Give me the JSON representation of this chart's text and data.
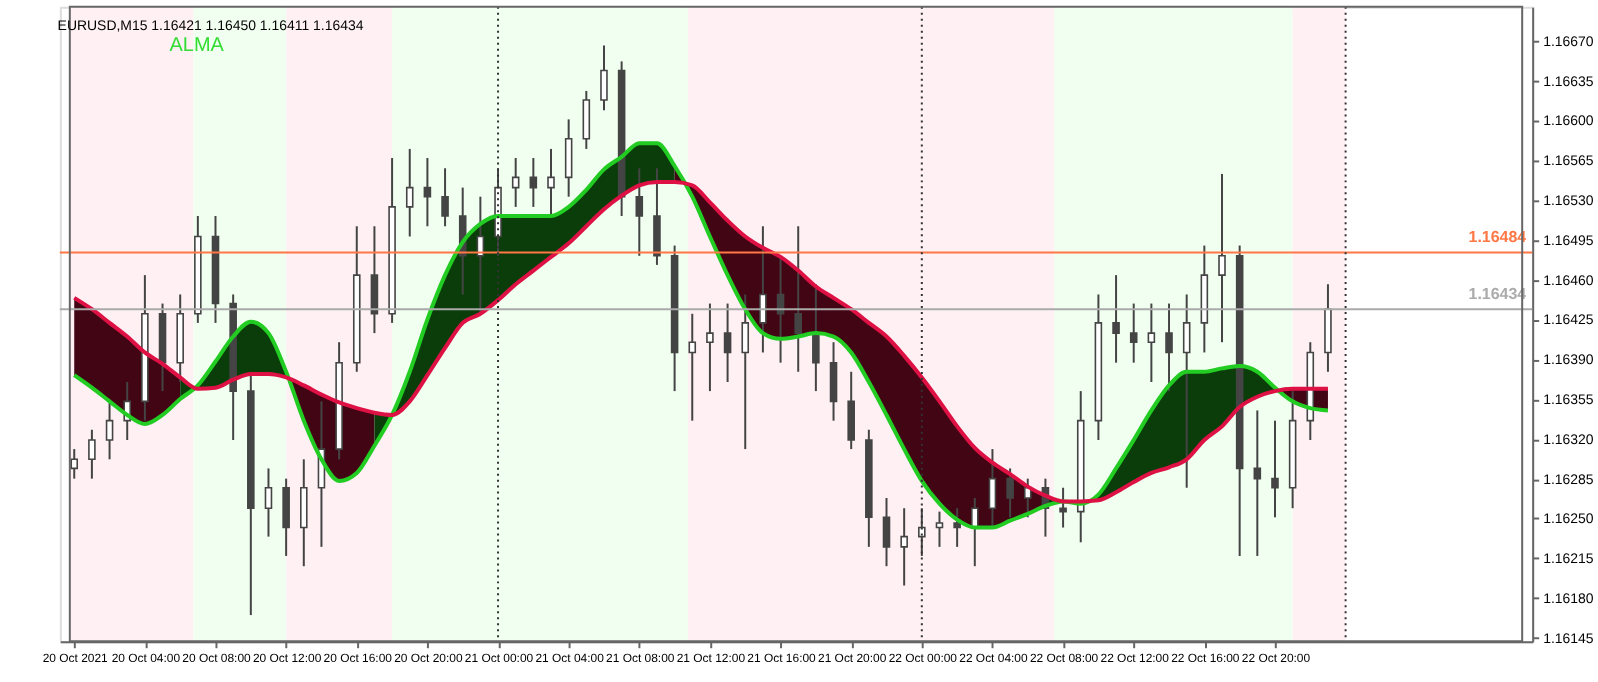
{
  "chart_data": {
    "type": "candlestick",
    "title": "EURUSD,M15  1.16421 1.16450 1.16411 1.16434",
    "annotations": [
      "ALMA"
    ],
    "x": [
      "2021-10-20T00:00",
      "2021-10-20T01:00",
      "2021-10-20T02:00",
      "2021-10-20T03:00",
      "2021-10-20T04:00",
      "2021-10-20T05:00",
      "2021-10-20T06:00",
      "2021-10-20T07:00",
      "2021-10-20T08:00",
      "2021-10-20T09:00",
      "2021-10-20T10:00",
      "2021-10-20T11:00",
      "2021-10-20T12:00",
      "2021-10-20T13:00",
      "2021-10-20T14:00",
      "2021-10-20T15:00",
      "2021-10-20T16:00",
      "2021-10-20T17:00",
      "2021-10-20T18:00",
      "2021-10-20T19:00",
      "2021-10-20T20:00",
      "2021-10-20T21:00",
      "2021-10-20T22:00",
      "2021-10-20T23:00",
      "2021-10-21T00:00",
      "2021-10-21T01:00",
      "2021-10-21T02:00",
      "2021-10-21T03:00",
      "2021-10-21T04:00",
      "2021-10-21T05:00",
      "2021-10-21T06:00",
      "2021-10-21T07:00",
      "2021-10-21T08:00",
      "2021-10-21T09:00",
      "2021-10-21T10:00",
      "2021-10-21T11:00",
      "2021-10-21T12:00",
      "2021-10-21T13:00",
      "2021-10-21T14:00",
      "2021-10-21T15:00",
      "2021-10-21T16:00",
      "2021-10-21T17:00",
      "2021-10-21T18:00",
      "2021-10-21T19:00",
      "2021-10-21T20:00",
      "2021-10-21T21:00",
      "2021-10-21T22:00",
      "2021-10-21T23:00",
      "2021-10-22T00:00",
      "2021-10-22T01:00",
      "2021-10-22T02:00",
      "2021-10-22T03:00",
      "2021-10-22T04:00",
      "2021-10-22T05:00",
      "2021-10-22T06:00",
      "2021-10-22T07:00",
      "2021-10-22T08:00",
      "2021-10-22T09:00",
      "2021-10-22T10:00",
      "2021-10-22T11:00",
      "2021-10-22T12:00",
      "2021-10-22T13:00",
      "2021-10-22T14:00",
      "2021-10-22T15:00",
      "2021-10-22T16:00",
      "2021-10-22T17:00",
      "2021-10-22T18:00",
      "2021-10-22T19:00",
      "2021-10-22T20:00",
      "2021-10-22T21:00",
      "2021-10-22T22:00",
      "2021-10-22T23:00"
    ],
    "ohlc": [
      [
        1.16294,
        1.16311,
        1.16285,
        1.16302
      ],
      [
        1.16302,
        1.16328,
        1.16285,
        1.16319
      ],
      [
        1.16319,
        1.16353,
        1.16302,
        1.16336
      ],
      [
        1.16336,
        1.1637,
        1.16319,
        1.16353
      ],
      [
        1.16353,
        1.16464,
        1.16336,
        1.1643
      ],
      [
        1.1643,
        1.16439,
        1.16362,
        1.16387
      ],
      [
        1.16387,
        1.16447,
        1.1637,
        1.1643
      ],
      [
        1.1643,
        1.16516,
        1.16422,
        1.16498
      ],
      [
        1.16498,
        1.16516,
        1.16422,
        1.16439
      ],
      [
        1.16439,
        1.16447,
        1.16319,
        1.16362
      ],
      [
        1.16362,
        1.16379,
        1.16165,
        1.16259
      ],
      [
        1.16259,
        1.16294,
        1.16234,
        1.16277
      ],
      [
        1.16277,
        1.16285,
        1.16217,
        1.16242
      ],
      [
        1.16242,
        1.16302,
        1.16208,
        1.16277
      ],
      [
        1.16277,
        1.16353,
        1.16225,
        1.16311
      ],
      [
        1.16311,
        1.16405,
        1.16302,
        1.16387
      ],
      [
        1.16387,
        1.16507,
        1.16379,
        1.16464
      ],
      [
        1.16464,
        1.16507,
        1.16413,
        1.1643
      ],
      [
        1.1643,
        1.16567,
        1.16422,
        1.16524
      ],
      [
        1.16524,
        1.16575,
        1.16498,
        1.16541
      ],
      [
        1.16541,
        1.16567,
        1.16507,
        1.16533
      ],
      [
        1.16533,
        1.16558,
        1.16507,
        1.16516
      ],
      [
        1.16516,
        1.16541,
        1.16447,
        1.16481
      ],
      [
        1.16481,
        1.16533,
        1.1643,
        1.16498
      ],
      [
        1.16498,
        1.16558,
        1.16481,
        1.16541
      ],
      [
        1.16541,
        1.16567,
        1.16524,
        1.1655
      ],
      [
        1.1655,
        1.16567,
        1.16524,
        1.16541
      ],
      [
        1.16541,
        1.16575,
        1.16516,
        1.1655
      ],
      [
        1.1655,
        1.16601,
        1.16533,
        1.16584
      ],
      [
        1.16584,
        1.16626,
        1.16575,
        1.16618
      ],
      [
        1.16618,
        1.16666,
        1.16609,
        1.16644
      ],
      [
        1.16644,
        1.16652,
        1.16516,
        1.16533
      ],
      [
        1.16533,
        1.16558,
        1.16481,
        1.16516
      ],
      [
        1.16516,
        1.16558,
        1.16473,
        1.16481
      ],
      [
        1.16481,
        1.1649,
        1.16362,
        1.16396
      ],
      [
        1.16396,
        1.1643,
        1.16336,
        1.16405
      ],
      [
        1.16405,
        1.16439,
        1.16362,
        1.16413
      ],
      [
        1.16413,
        1.16439,
        1.1637,
        1.16396
      ],
      [
        1.16396,
        1.16447,
        1.16311,
        1.16422
      ],
      [
        1.16422,
        1.16507,
        1.16396,
        1.16447
      ],
      [
        1.16447,
        1.16481,
        1.16387,
        1.1643
      ],
      [
        1.1643,
        1.16507,
        1.16379,
        1.16413
      ],
      [
        1.16413,
        1.16456,
        1.16362,
        1.16387
      ],
      [
        1.16387,
        1.16405,
        1.16336,
        1.16353
      ],
      [
        1.16353,
        1.16379,
        1.16311,
        1.16319
      ],
      [
        1.16319,
        1.16328,
        1.16225,
        1.16251
      ],
      [
        1.16251,
        1.16268,
        1.16208,
        1.16225
      ],
      [
        1.16225,
        1.16259,
        1.16191,
        1.16234
      ],
      [
        1.16234,
        1.16259,
        1.16217,
        1.16242
      ],
      [
        1.16242,
        1.16256,
        1.16225,
        1.16246
      ],
      [
        1.16246,
        1.16259,
        1.16225,
        1.16242
      ],
      [
        1.16242,
        1.16268,
        1.16208,
        1.16259
      ],
      [
        1.16259,
        1.16311,
        1.16242,
        1.16285
      ],
      [
        1.16285,
        1.16294,
        1.16251,
        1.16268
      ],
      [
        1.16268,
        1.16285,
        1.16251,
        1.16277
      ],
      [
        1.16277,
        1.16285,
        1.16234,
        1.16259
      ],
      [
        1.16259,
        1.16277,
        1.16242,
        1.16256
      ],
      [
        1.16256,
        1.16362,
        1.16229,
        1.16336
      ],
      [
        1.16336,
        1.16447,
        1.16319,
        1.16422
      ],
      [
        1.16422,
        1.16464,
        1.16387,
        1.16413
      ],
      [
        1.16413,
        1.16439,
        1.16387,
        1.16405
      ],
      [
        1.16405,
        1.16439,
        1.1637,
        1.16413
      ],
      [
        1.16413,
        1.16439,
        1.16362,
        1.16396
      ],
      [
        1.16396,
        1.16447,
        1.16277,
        1.16422
      ],
      [
        1.16422,
        1.1649,
        1.16396,
        1.16464
      ],
      [
        1.16464,
        1.16553,
        1.16405,
        1.16481
      ],
      [
        1.16481,
        1.1649,
        1.16217,
        1.16294
      ],
      [
        1.16294,
        1.16345,
        1.16217,
        1.16285
      ],
      [
        1.16285,
        1.16336,
        1.16251,
        1.16277
      ],
      [
        1.16277,
        1.16362,
        1.16259,
        1.16336
      ],
      [
        1.16336,
        1.16405,
        1.16319,
        1.16396
      ],
      [
        1.16396,
        1.16456,
        1.16379,
        1.16434
      ]
    ],
    "series": [
      {
        "type": "line",
        "color": "#22cc22",
        "values": [
          1.16376,
          1.16365,
          1.16353,
          1.16341,
          1.16333,
          1.16341,
          1.16355,
          1.16367,
          1.16388,
          1.1641,
          1.16423,
          1.16413,
          1.16379,
          1.16336,
          1.16302,
          1.16283,
          1.1629,
          1.16314,
          1.16341,
          1.16379,
          1.16425,
          1.16464,
          1.16493,
          1.16509,
          1.16516,
          1.16516,
          1.16516,
          1.16516,
          1.16524,
          1.16539,
          1.16557,
          1.16568,
          1.1658,
          1.1658,
          1.1656,
          1.16533,
          1.16498,
          1.16464,
          1.16434,
          1.16413,
          1.16408,
          1.1641,
          1.16413,
          1.1641,
          1.16396,
          1.1637,
          1.16341,
          1.16311,
          1.16283,
          1.16263,
          1.16249,
          1.16242,
          1.16242,
          1.16248,
          1.16254,
          1.16261,
          1.16265,
          1.16263,
          1.16271,
          1.16294,
          1.16319,
          1.16345,
          1.16367,
          1.16379,
          1.16379,
          1.16382,
          1.16384,
          1.16379,
          1.16365,
          1.16353,
          1.16347,
          1.16345
        ]
      },
      {
        "type": "line",
        "color": "#dd1144",
        "values": [
          1.16444,
          1.16434,
          1.16422,
          1.1641,
          1.16396,
          1.16386,
          1.16374,
          1.16364,
          1.16365,
          1.16372,
          1.16377,
          1.16377,
          1.16374,
          1.16367,
          1.16359,
          1.16352,
          1.16347,
          1.16343,
          1.16341,
          1.16353,
          1.16376,
          1.164,
          1.16422,
          1.1643,
          1.16442,
          1.16456,
          1.16468,
          1.1648,
          1.16492,
          1.16507,
          1.16522,
          1.16534,
          1.16543,
          1.16546,
          1.16546,
          1.16543,
          1.16528,
          1.16512,
          1.16498,
          1.16488,
          1.1648,
          1.16468,
          1.16454,
          1.16444,
          1.16434,
          1.16422,
          1.1641,
          1.16393,
          1.16374,
          1.16353,
          1.16331,
          1.16312,
          1.16299,
          1.16289,
          1.16278,
          1.1627,
          1.16265,
          1.16265,
          1.16266,
          1.16273,
          1.16282,
          1.1629,
          1.16295,
          1.16302,
          1.16319,
          1.16331,
          1.16348,
          1.16357,
          1.16362,
          1.16364,
          1.16364,
          1.16364
        ]
      }
    ],
    "xlim": [
      "2021-10-19T23:45",
      "2021-10-23T10:00"
    ],
    "xticks": [
      {
        "value": "2021-10-20T00:00",
        "label": "20 Oct 2021"
      },
      {
        "value": "2021-10-20T04:00",
        "label": "20 Oct 04:00"
      },
      {
        "value": "2021-10-20T08:00",
        "label": "20 Oct 08:00"
      },
      {
        "value": "2021-10-20T12:00",
        "label": "20 Oct 12:00"
      },
      {
        "value": "2021-10-20T16:00",
        "label": "20 Oct 16:00"
      },
      {
        "value": "2021-10-20T20:00",
        "label": "20 Oct 20:00"
      },
      {
        "value": "2021-10-21T00:00",
        "label": "21 Oct 00:00"
      },
      {
        "value": "2021-10-21T04:00",
        "label": "21 Oct 04:00"
      },
      {
        "value": "2021-10-21T08:00",
        "label": "21 Oct 08:00"
      },
      {
        "value": "2021-10-21T12:00",
        "label": "21 Oct 12:00"
      },
      {
        "value": "2021-10-21T16:00",
        "label": "21 Oct 16:00"
      },
      {
        "value": "2021-10-21T20:00",
        "label": "21 Oct 20:00"
      },
      {
        "value": "2021-10-22T00:00",
        "label": "22 Oct 00:00"
      },
      {
        "value": "2021-10-22T04:00",
        "label": "22 Oct 04:00"
      },
      {
        "value": "2021-10-22T08:00",
        "label": "22 Oct 08:00"
      },
      {
        "value": "2021-10-22T12:00",
        "label": "22 Oct 12:00"
      },
      {
        "value": "2021-10-22T16:00",
        "label": "22 Oct 16:00"
      },
      {
        "value": "2021-10-22T20:00",
        "label": "22 Oct 20:00"
      }
    ],
    "ylim": [
      1.16142,
      1.167
    ],
    "yticks": [
      {
        "value": 1.16145,
        "label": "1.16145"
      },
      {
        "value": 1.1618,
        "label": "1.16180"
      },
      {
        "value": 1.16215,
        "label": "1.16215"
      },
      {
        "value": 1.1625,
        "label": "1.16250"
      },
      {
        "value": 1.16285,
        "label": "1.16285"
      },
      {
        "value": 1.1632,
        "label": "1.16320"
      },
      {
        "value": 1.16355,
        "label": "1.16355"
      },
      {
        "value": 1.1639,
        "label": "1.16390"
      },
      {
        "value": 1.16425,
        "label": "1.16425"
      },
      {
        "value": 1.1646,
        "label": "1.16460"
      },
      {
        "value": 1.16495,
        "label": "1.16495"
      },
      {
        "value": 1.1653,
        "label": "1.16530"
      },
      {
        "value": 1.16565,
        "label": "1.16565"
      },
      {
        "value": 1.166,
        "label": "1.16600"
      },
      {
        "value": 1.16635,
        "label": "1.16635"
      },
      {
        "value": 1.1667,
        "label": "1.16670"
      }
    ],
    "ref_lines": [
      {
        "axis": "y",
        "value": 1.16484,
        "label": "1.16484",
        "color": "#ff7744"
      },
      {
        "axis": "y",
        "value": 1.16434,
        "label": "1.16434",
        "color": "#aaaaaa"
      },
      {
        "axis": "x",
        "value": "2021-10-21T00:00",
        "label": null,
        "color": "#333333",
        "line_style": "dotted"
      },
      {
        "axis": "x",
        "value": "2021-10-22T00:00",
        "label": null,
        "color": "#333333",
        "line_style": "dotted"
      },
      {
        "axis": "x",
        "value": "2021-10-23T00:00",
        "label": null,
        "color": "#333333",
        "line_style": "dotted"
      }
    ],
    "bands": [
      {
        "axis": "x",
        "from": "2021-10-19T23:45",
        "to": "2021-10-20T06:45",
        "label": null,
        "color": "#fff0f4"
      },
      {
        "axis": "x",
        "from": "2021-10-20T06:45",
        "to": "2021-10-20T12:00",
        "label": null,
        "color": "#f0fff0"
      },
      {
        "axis": "x",
        "from": "2021-10-20T12:00",
        "to": "2021-10-20T18:00",
        "label": null,
        "color": "#fff0f4"
      },
      {
        "axis": "x",
        "from": "2021-10-20T18:00",
        "to": "2021-10-21T10:45",
        "label": null,
        "color": "#f0fff0"
      },
      {
        "axis": "x",
        "from": "2021-10-21T10:45",
        "to": "2021-10-22T07:30",
        "label": null,
        "color": "#fff0f4"
      },
      {
        "axis": "x",
        "from": "2021-10-22T07:30",
        "to": "2021-10-22T21:00",
        "label": null,
        "color": "#f0fff0"
      },
      {
        "axis": "x",
        "from": "2021-10-22T21:00",
        "to": "2021-10-23T00:00",
        "label": null,
        "color": "#fff0f4"
      }
    ],
    "grid": false
  }
}
